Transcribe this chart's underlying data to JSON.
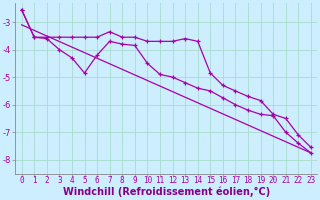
{
  "xlabel": "Windchill (Refroidissement éolien,°C)",
  "background_color": "#cceeff",
  "grid_color": "#aaddcc",
  "line_color": "#aa00aa",
  "xlim": [
    -0.5,
    23.5
  ],
  "ylim": [
    -8.5,
    -2.3
  ],
  "yticks": [
    -8,
    -7,
    -6,
    -5,
    -4,
    -3
  ],
  "xticks": [
    0,
    1,
    2,
    3,
    4,
    5,
    6,
    7,
    8,
    9,
    10,
    11,
    12,
    13,
    14,
    15,
    16,
    17,
    18,
    19,
    20,
    21,
    22,
    23
  ],
  "line1_x": [
    0,
    1,
    2,
    3,
    4,
    5,
    6,
    7,
    8,
    9,
    10,
    11,
    12,
    13,
    14,
    15,
    16,
    17,
    18,
    19,
    20,
    21,
    22,
    23
  ],
  "line1_y": [
    -2.55,
    -3.55,
    -3.55,
    -3.55,
    -3.55,
    -3.55,
    -3.55,
    -3.35,
    -3.55,
    -3.55,
    -3.7,
    -3.7,
    -3.7,
    -3.6,
    -3.7,
    -4.85,
    -5.3,
    -5.5,
    -5.7,
    -5.85,
    -6.35,
    -6.5,
    -7.1,
    -7.55
  ],
  "line2_x": [
    0,
    1,
    2,
    3,
    4,
    5,
    6,
    7,
    8,
    9,
    10,
    11,
    12,
    13,
    14,
    15,
    16,
    17,
    18,
    19,
    20,
    21,
    22,
    23
  ],
  "line2_y": [
    -2.55,
    -3.55,
    -3.6,
    -4.0,
    -4.3,
    -4.85,
    -4.2,
    -3.7,
    -3.8,
    -3.85,
    -4.5,
    -4.9,
    -5.0,
    -5.2,
    -5.4,
    -5.5,
    -5.75,
    -6.0,
    -6.2,
    -6.35,
    -6.4,
    -7.0,
    -7.4,
    -7.75
  ],
  "line3_x": [
    0,
    23
  ],
  "line3_y": [
    -3.1,
    -7.75
  ],
  "xlabel_color": "#880088",
  "xlabel_fontsize": 7,
  "tick_fontsize": 6,
  "xtick_fontsize": 5.5
}
